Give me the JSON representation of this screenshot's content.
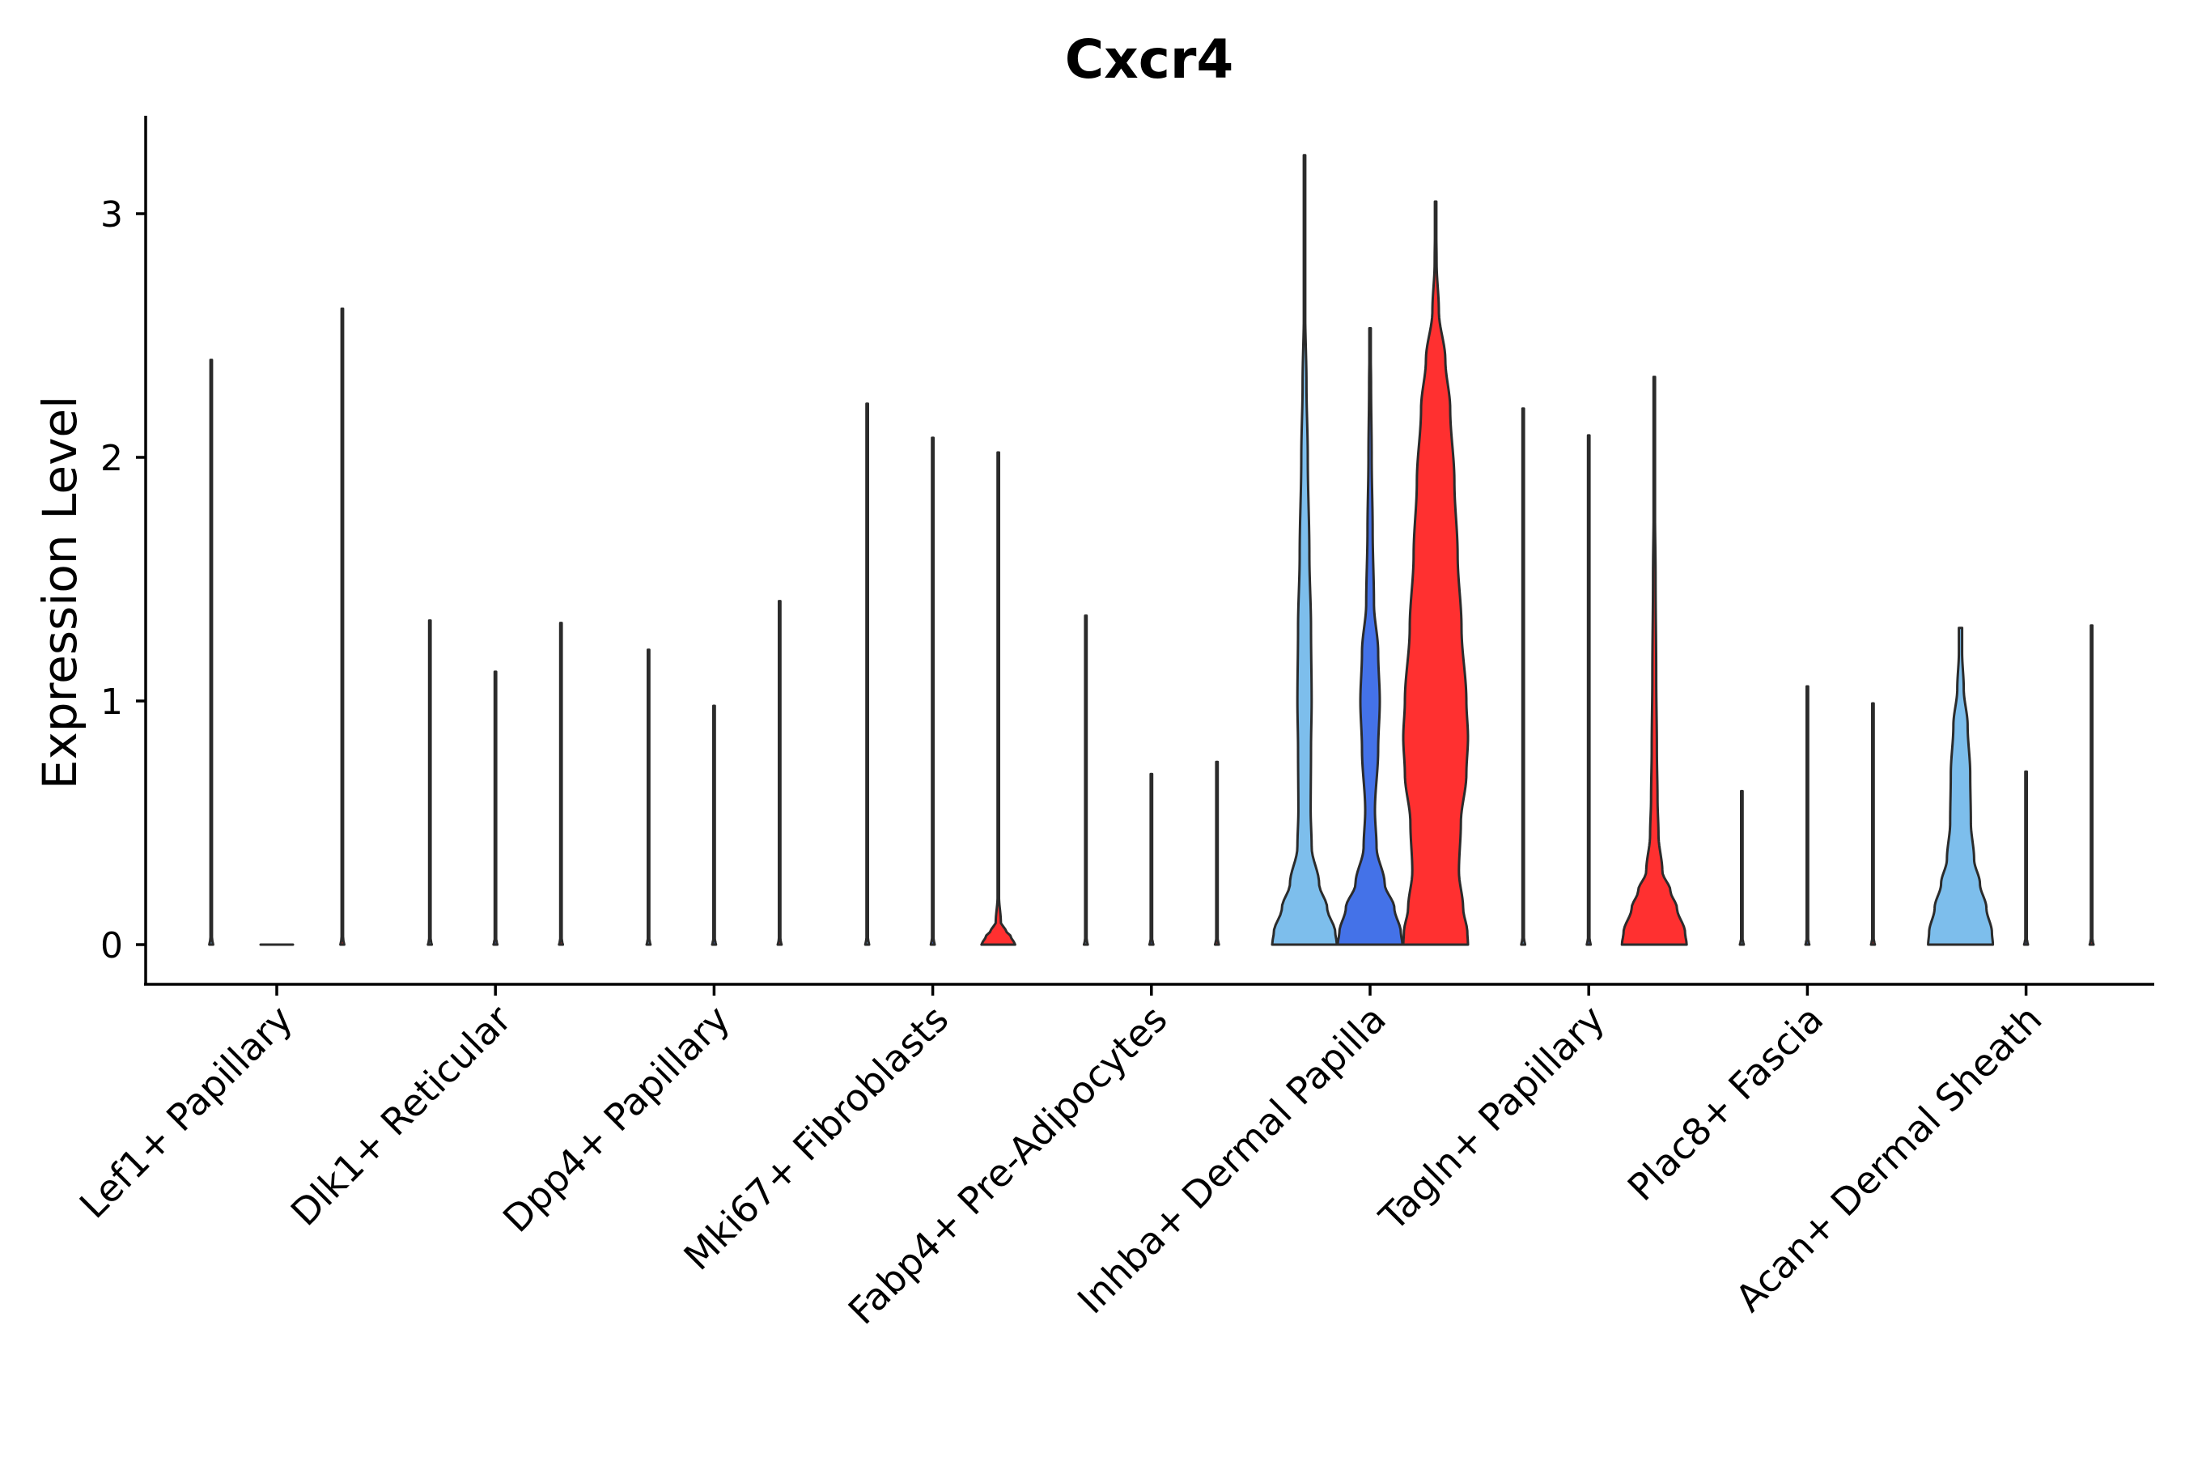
{
  "chart_data": {
    "type": "violin",
    "title": "Cxcr4",
    "xlabel": "",
    "ylabel": "Expression Level",
    "ylim": [
      -0.16,
      3.4
    ],
    "yticks": [
      0,
      1,
      2,
      3
    ],
    "grid": false,
    "legend": "none",
    "categories": [
      "Lef1+ Papillary",
      "Dlk1+ Reticular",
      "Dpp4+ Papillary",
      "Mki67+ Fibroblasts",
      "Fabp4+ Pre-Adipocytes",
      "Inhba+ Dermal Papilla",
      "Tagln+ Papillary",
      "Plac8+ Fascia",
      "Acan+ Dermal Sheath"
    ],
    "series": [
      {
        "name": "group-1",
        "color": "#7DBEEC"
      },
      {
        "name": "group-2",
        "color": "#4472E8"
      },
      {
        "name": "group-3",
        "color": "#FF3030"
      }
    ],
    "violins": [
      {
        "category": 0,
        "series": 0,
        "max": 2.4,
        "profile": [
          [
            0,
            0.06
          ],
          [
            0.01,
            0.04
          ],
          [
            0.03,
            0.008
          ],
          [
            0.1,
            0.003
          ],
          [
            2.4,
            0.003
          ]
        ]
      },
      {
        "category": 0,
        "series": 1,
        "max": 0.0,
        "profile": [
          [
            0,
            0.5
          ],
          [
            0.01,
            0.3
          ],
          [
            0.03,
            0.0
          ]
        ]
      },
      {
        "category": 0,
        "series": 2,
        "max": 2.61,
        "profile": [
          [
            0,
            0.06
          ],
          [
            0.01,
            0.04
          ],
          [
            0.03,
            0.008
          ],
          [
            0.1,
            0.003
          ],
          [
            2.61,
            0.003
          ]
        ]
      },
      {
        "category": 1,
        "series": 0,
        "max": 1.33,
        "profile": [
          [
            0,
            0.06
          ],
          [
            0.01,
            0.04
          ],
          [
            0.03,
            0.008
          ],
          [
            0.1,
            0.003
          ],
          [
            1.33,
            0.003
          ]
        ]
      },
      {
        "category": 1,
        "series": 1,
        "max": 1.12,
        "profile": [
          [
            0,
            0.06
          ],
          [
            0.01,
            0.04
          ],
          [
            0.03,
            0.008
          ],
          [
            0.1,
            0.003
          ],
          [
            1.12,
            0.003
          ]
        ]
      },
      {
        "category": 1,
        "series": 2,
        "max": 1.32,
        "profile": [
          [
            0,
            0.06
          ],
          [
            0.01,
            0.04
          ],
          [
            0.03,
            0.008
          ],
          [
            0.1,
            0.003
          ],
          [
            1.32,
            0.003
          ]
        ]
      },
      {
        "category": 2,
        "series": 0,
        "max": 1.21,
        "profile": [
          [
            0,
            0.06
          ],
          [
            0.01,
            0.04
          ],
          [
            0.03,
            0.008
          ],
          [
            0.1,
            0.003
          ],
          [
            1.21,
            0.003
          ]
        ]
      },
      {
        "category": 2,
        "series": 1,
        "max": 0.98,
        "profile": [
          [
            0,
            0.06
          ],
          [
            0.01,
            0.04
          ],
          [
            0.03,
            0.008
          ],
          [
            0.1,
            0.003
          ],
          [
            0.98,
            0.003
          ]
        ]
      },
      {
        "category": 2,
        "series": 2,
        "max": 1.41,
        "profile": [
          [
            0,
            0.06
          ],
          [
            0.01,
            0.04
          ],
          [
            0.03,
            0.008
          ],
          [
            0.1,
            0.003
          ],
          [
            1.41,
            0.003
          ]
        ]
      },
      {
        "category": 3,
        "series": 0,
        "max": 2.22,
        "profile": [
          [
            0,
            0.06
          ],
          [
            0.01,
            0.04
          ],
          [
            0.03,
            0.008
          ],
          [
            0.1,
            0.003
          ],
          [
            2.22,
            0.003
          ]
        ]
      },
      {
        "category": 3,
        "series": 1,
        "max": 2.08,
        "profile": [
          [
            0,
            0.06
          ],
          [
            0.01,
            0.04
          ],
          [
            0.03,
            0.008
          ],
          [
            0.1,
            0.003
          ],
          [
            2.08,
            0.003
          ]
        ]
      },
      {
        "category": 3,
        "series": 2,
        "max": 2.02,
        "profile": [
          [
            0,
            0.52
          ],
          [
            0.03,
            0.4
          ],
          [
            0.06,
            0.22
          ],
          [
            0.09,
            0.08
          ],
          [
            0.2,
            0.02
          ],
          [
            0.4,
            0.012
          ],
          [
            0.9,
            0.006
          ],
          [
            2.02,
            0.003
          ]
        ]
      },
      {
        "category": 4,
        "series": 0,
        "max": 1.35,
        "profile": [
          [
            0,
            0.06
          ],
          [
            0.01,
            0.04
          ],
          [
            0.03,
            0.008
          ],
          [
            0.1,
            0.003
          ],
          [
            1.35,
            0.003
          ]
        ]
      },
      {
        "category": 4,
        "series": 1,
        "max": 0.7,
        "profile": [
          [
            0,
            0.06
          ],
          [
            0.01,
            0.04
          ],
          [
            0.03,
            0.008
          ],
          [
            0.1,
            0.003
          ],
          [
            0.7,
            0.003
          ]
        ]
      },
      {
        "category": 4,
        "series": 2,
        "max": 0.75,
        "profile": [
          [
            0,
            0.06
          ],
          [
            0.01,
            0.04
          ],
          [
            0.03,
            0.008
          ],
          [
            0.1,
            0.003
          ],
          [
            0.75,
            0.003
          ]
        ]
      },
      {
        "category": 5,
        "series": 0,
        "max": 3.24,
        "profile": [
          [
            0,
            1.0
          ],
          [
            0.05,
            0.95
          ],
          [
            0.15,
            0.7
          ],
          [
            0.25,
            0.45
          ],
          [
            0.4,
            0.22
          ],
          [
            0.55,
            0.19
          ],
          [
            0.8,
            0.2
          ],
          [
            1.0,
            0.22
          ],
          [
            1.3,
            0.2
          ],
          [
            1.6,
            0.15
          ],
          [
            2.0,
            0.1
          ],
          [
            2.3,
            0.06
          ],
          [
            2.6,
            0.02
          ],
          [
            2.8,
            0.008
          ],
          [
            3.24,
            0.003
          ]
        ]
      },
      {
        "category": 5,
        "series": 1,
        "max": 2.53,
        "profile": [
          [
            0,
            1.0
          ],
          [
            0.05,
            0.95
          ],
          [
            0.15,
            0.75
          ],
          [
            0.25,
            0.45
          ],
          [
            0.4,
            0.2
          ],
          [
            0.55,
            0.15
          ],
          [
            0.8,
            0.25
          ],
          [
            1.0,
            0.3
          ],
          [
            1.2,
            0.25
          ],
          [
            1.4,
            0.12
          ],
          [
            1.7,
            0.08
          ],
          [
            2.0,
            0.05
          ],
          [
            2.3,
            0.03
          ],
          [
            2.53,
            0.005
          ]
        ]
      },
      {
        "category": 5,
        "series": 2,
        "max": 3.05,
        "profile": [
          [
            0,
            1.0
          ],
          [
            0.05,
            0.98
          ],
          [
            0.15,
            0.85
          ],
          [
            0.3,
            0.72
          ],
          [
            0.5,
            0.78
          ],
          [
            0.7,
            0.95
          ],
          [
            0.85,
            1.0
          ],
          [
            1.0,
            0.95
          ],
          [
            1.3,
            0.8
          ],
          [
            1.6,
            0.68
          ],
          [
            1.9,
            0.58
          ],
          [
            2.2,
            0.45
          ],
          [
            2.4,
            0.3
          ],
          [
            2.6,
            0.1
          ],
          [
            2.8,
            0.03
          ],
          [
            3.05,
            0.004
          ]
        ]
      },
      {
        "category": 6,
        "series": 0,
        "max": 2.2,
        "profile": [
          [
            0,
            0.06
          ],
          [
            0.01,
            0.04
          ],
          [
            0.03,
            0.008
          ],
          [
            0.1,
            0.003
          ],
          [
            2.2,
            0.003
          ]
        ]
      },
      {
        "category": 6,
        "series": 1,
        "max": 2.09,
        "profile": [
          [
            0,
            0.06
          ],
          [
            0.01,
            0.04
          ],
          [
            0.03,
            0.008
          ],
          [
            0.1,
            0.003
          ],
          [
            2.09,
            0.003
          ]
        ]
      },
      {
        "category": 6,
        "series": 2,
        "max": 2.33,
        "profile": [
          [
            0,
            1.0
          ],
          [
            0.05,
            0.95
          ],
          [
            0.15,
            0.7
          ],
          [
            0.22,
            0.5
          ],
          [
            0.3,
            0.25
          ],
          [
            0.45,
            0.13
          ],
          [
            0.6,
            0.1
          ],
          [
            0.8,
            0.08
          ],
          [
            1.1,
            0.06
          ],
          [
            1.5,
            0.04
          ],
          [
            1.8,
            0.02
          ],
          [
            2.33,
            0.003
          ]
        ]
      },
      {
        "category": 7,
        "series": 0,
        "max": 0.63,
        "profile": [
          [
            0,
            0.06
          ],
          [
            0.01,
            0.04
          ],
          [
            0.03,
            0.008
          ],
          [
            0.1,
            0.003
          ],
          [
            0.63,
            0.003
          ]
        ]
      },
      {
        "category": 7,
        "series": 1,
        "max": 1.06,
        "profile": [
          [
            0,
            0.06
          ],
          [
            0.01,
            0.04
          ],
          [
            0.03,
            0.008
          ],
          [
            0.1,
            0.003
          ],
          [
            1.06,
            0.003
          ]
        ]
      },
      {
        "category": 7,
        "series": 2,
        "max": 0.99,
        "profile": [
          [
            0,
            0.06
          ],
          [
            0.01,
            0.04
          ],
          [
            0.03,
            0.008
          ],
          [
            0.1,
            0.003
          ],
          [
            0.99,
            0.003
          ]
        ]
      },
      {
        "category": 8,
        "series": 0,
        "max": 1.3,
        "profile": [
          [
            0,
            1.0
          ],
          [
            0.05,
            0.97
          ],
          [
            0.15,
            0.8
          ],
          [
            0.25,
            0.6
          ],
          [
            0.35,
            0.42
          ],
          [
            0.5,
            0.32
          ],
          [
            0.7,
            0.3
          ],
          [
            0.9,
            0.22
          ],
          [
            1.05,
            0.1
          ],
          [
            1.2,
            0.05
          ],
          [
            1.3,
            0.05
          ]
        ]
      },
      {
        "category": 8,
        "series": 1,
        "max": 0.71,
        "profile": [
          [
            0,
            0.06
          ],
          [
            0.01,
            0.04
          ],
          [
            0.03,
            0.008
          ],
          [
            0.1,
            0.003
          ],
          [
            0.71,
            0.003
          ]
        ]
      },
      {
        "category": 8,
        "series": 2,
        "max": 1.31,
        "profile": [
          [
            0,
            0.06
          ],
          [
            0.01,
            0.04
          ],
          [
            0.03,
            0.008
          ],
          [
            0.1,
            0.003
          ],
          [
            1.31,
            0.003
          ]
        ]
      }
    ]
  }
}
